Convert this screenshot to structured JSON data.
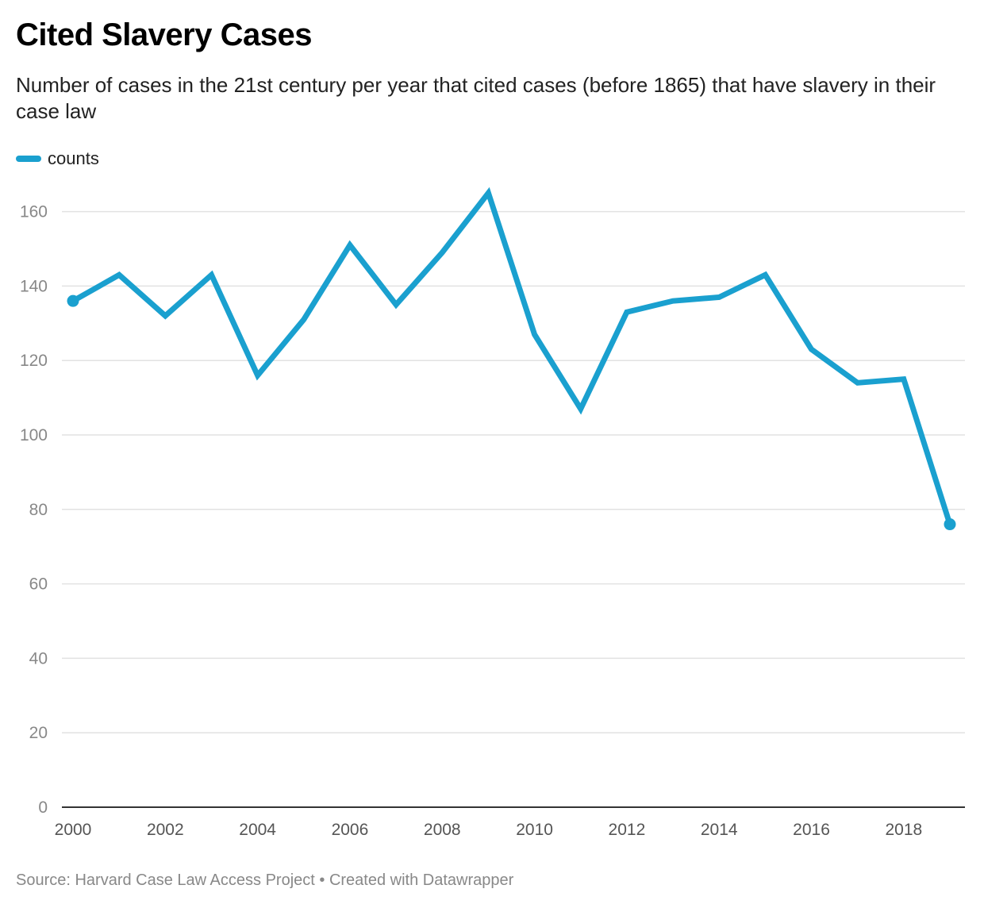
{
  "title": "Cited Slavery Cases",
  "subtitle": "Number of cases in the 21st century per year that cited cases (before 1865) that have slavery in their case law",
  "footer": "Source: Harvard Case Law Access Project • Created with Datawrapper",
  "colors": {
    "line": "#1aa0cf",
    "grid": "#e2e2e2",
    "axis": "#333333"
  },
  "chart_data": {
    "type": "line",
    "title": "Cited Slavery Cases",
    "subtitle": "Number of cases in the 21st century per year that cited cases (before 1865) that have slavery in their case law",
    "xlabel": "",
    "ylabel": "",
    "x": [
      2000,
      2001,
      2002,
      2003,
      2004,
      2005,
      2006,
      2007,
      2008,
      2009,
      2010,
      2011,
      2012,
      2013,
      2014,
      2015,
      2016,
      2017,
      2018,
      2019
    ],
    "series": [
      {
        "name": "counts",
        "values": [
          136,
          143,
          132,
          143,
          116,
          131,
          151,
          135,
          149,
          165,
          127,
          107,
          133,
          136,
          137,
          143,
          123,
          114,
          115,
          76
        ]
      }
    ],
    "xlim": [
      2000,
      2019
    ],
    "ylim": [
      0,
      160
    ],
    "y_ticks": [
      0,
      20,
      40,
      60,
      80,
      100,
      120,
      140,
      160
    ],
    "x_ticks": [
      2000,
      2002,
      2004,
      2006,
      2008,
      2010,
      2012,
      2014,
      2016,
      2018
    ],
    "grid": true,
    "legend": "top-left"
  }
}
